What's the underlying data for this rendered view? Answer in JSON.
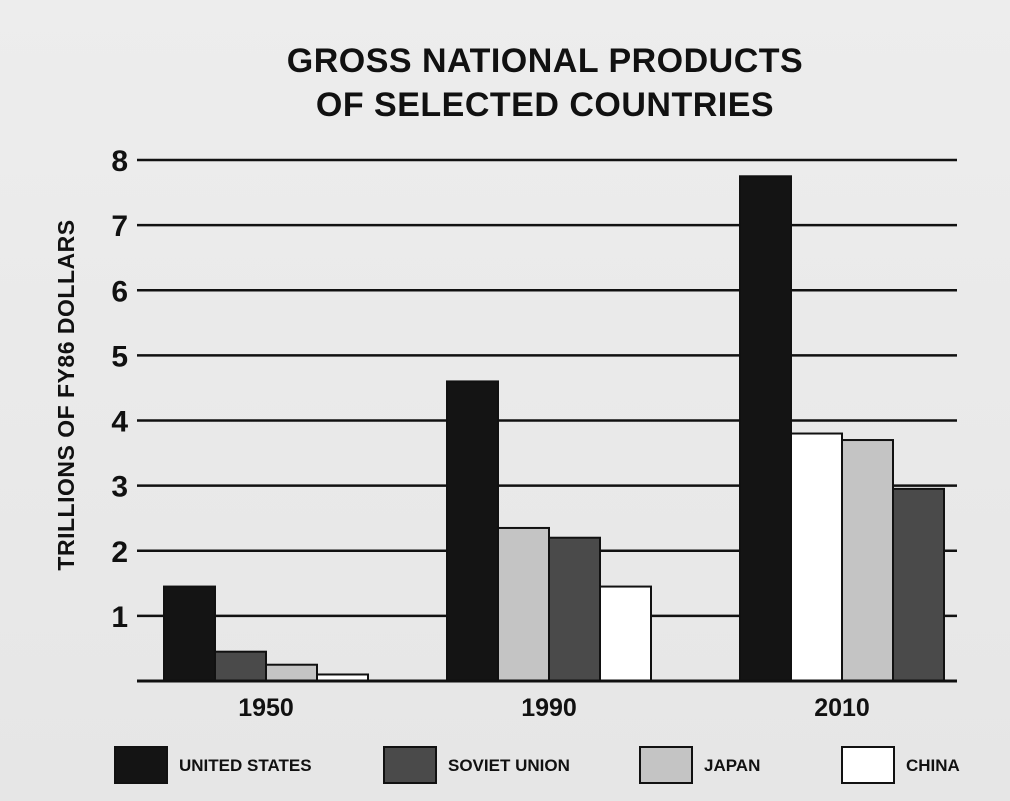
{
  "chart_data": {
    "type": "bar",
    "title": [
      "GROSS NATIONAL PRODUCTS",
      "OF SELECTED COUNTRIES"
    ],
    "xlabel": "",
    "ylabel": "TRILLIONS OF FY86 DOLLARS",
    "ylim": [
      0,
      8
    ],
    "y_ticks": [
      "1",
      "2",
      "3",
      "4",
      "5",
      "6",
      "7",
      "8"
    ],
    "grid": true,
    "legend_position": "bottom",
    "categories": [
      "1950",
      "1990",
      "2010"
    ],
    "groups": [
      {
        "category": "1950",
        "bars": [
          {
            "series": "UNITED STATES",
            "value": 1.45
          },
          {
            "series": "SOVIET UNION",
            "value": 0.45
          },
          {
            "series": "JAPAN",
            "value": 0.25
          },
          {
            "series": "CHINA",
            "value": 0.1
          }
        ]
      },
      {
        "category": "1990",
        "bars": [
          {
            "series": "UNITED STATES",
            "value": 4.6
          },
          {
            "series": "JAPAN",
            "value": 2.35
          },
          {
            "series": "SOVIET UNION",
            "value": 2.2
          },
          {
            "series": "CHINA",
            "value": 1.45
          }
        ]
      },
      {
        "category": "2010",
        "bars": [
          {
            "series": "UNITED STATES",
            "value": 7.75
          },
          {
            "series": "CHINA",
            "value": 3.8
          },
          {
            "series": "JAPAN",
            "value": 3.7
          },
          {
            "series": "SOVIET UNION",
            "value": 2.95
          }
        ]
      }
    ],
    "series": [
      {
        "name": "UNITED STATES",
        "color": "#141414",
        "values": [
          1.45,
          4.6,
          7.75
        ]
      },
      {
        "name": "SOVIET UNION",
        "color": "#4a4a4a",
        "values": [
          0.45,
          2.2,
          2.95
        ]
      },
      {
        "name": "JAPAN",
        "color": "#c4c4c4",
        "values": [
          0.25,
          2.35,
          3.7
        ]
      },
      {
        "name": "CHINA",
        "color": "#ffffff",
        "values": [
          0.1,
          1.45,
          3.8
        ]
      }
    ]
  }
}
